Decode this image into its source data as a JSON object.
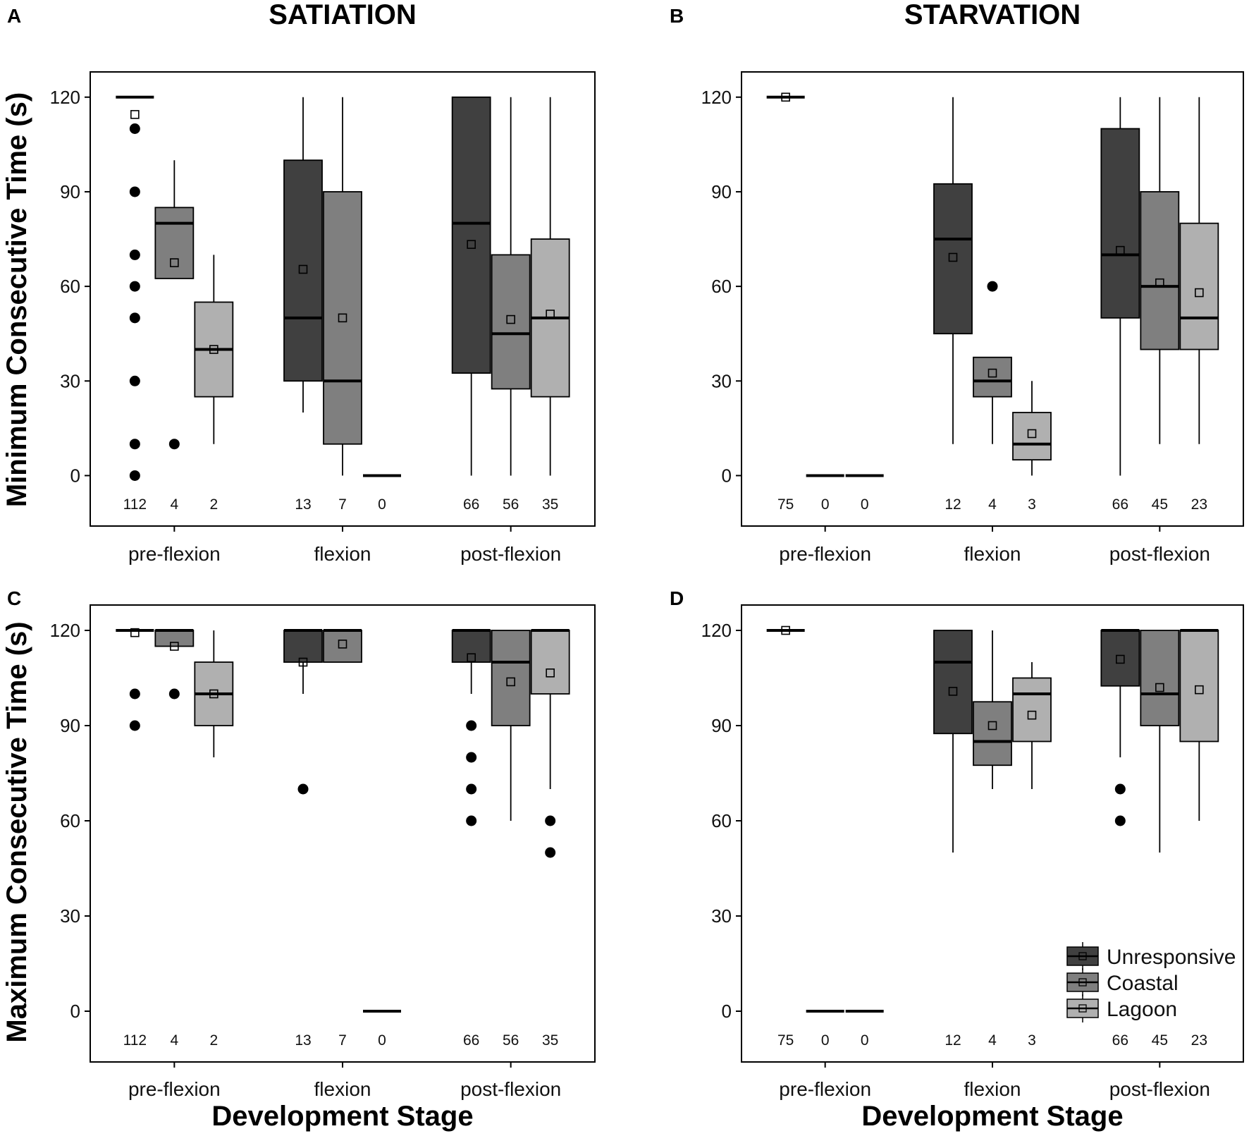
{
  "figure": {
    "col_titles": [
      "SATIATION",
      "STARVATION"
    ],
    "x_axis_title": "Development Stage",
    "y_axis_titles": [
      "Minimum Consecutive Time (s)",
      "Maximum Consecutive Time (s)"
    ]
  },
  "chart_data": [
    {
      "type": "box",
      "panel": "A",
      "title": "SATIATION",
      "ylabel": "Minimum Consecutive Time (s)",
      "xlabel": "",
      "ylim": [
        -16,
        128
      ],
      "yticks": [
        0,
        30,
        60,
        90,
        120
      ],
      "categories": [
        "pre-flexion",
        "flexion",
        "post-flexion"
      ],
      "boxes": [
        {
          "stage": "pre-flexion",
          "group": "Unresponsive",
          "q1": 120,
          "median": 120,
          "q3": 120,
          "low": 120,
          "high": 120,
          "mean": 114.5,
          "n": "112",
          "outliers": [
            110,
            90,
            70,
            60,
            50,
            30,
            10,
            0
          ]
        },
        {
          "stage": "pre-flexion",
          "group": "Coastal",
          "q1": 62.5,
          "median": 80,
          "q3": 85,
          "low": 62.5,
          "high": 100,
          "mean": 67.5,
          "n": "4",
          "outliers": [
            10
          ]
        },
        {
          "stage": "pre-flexion",
          "group": "Lagoon",
          "q1": 25,
          "median": 40,
          "q3": 55,
          "low": 10,
          "high": 70,
          "mean": 40,
          "n": "2",
          "outliers": []
        },
        {
          "stage": "flexion",
          "group": "Unresponsive",
          "q1": 30,
          "median": 50,
          "q3": 100,
          "low": 20,
          "high": 120,
          "mean": 65.4,
          "n": "13",
          "outliers": []
        },
        {
          "stage": "flexion",
          "group": "Coastal",
          "q1": 10,
          "median": 30,
          "q3": 90,
          "low": 0,
          "high": 120,
          "mean": 50,
          "n": "7",
          "outliers": []
        },
        {
          "stage": "flexion",
          "group": "Lagoon",
          "q1": 0,
          "median": 0,
          "q3": 0,
          "low": 0,
          "high": 0,
          "mean": null,
          "n": "0",
          "outliers": []
        },
        {
          "stage": "post-flexion",
          "group": "Unresponsive",
          "q1": 32.5,
          "median": 80,
          "q3": 120,
          "low": 0,
          "high": 120,
          "mean": 73.3,
          "n": "66",
          "outliers": []
        },
        {
          "stage": "post-flexion",
          "group": "Coastal",
          "q1": 27.5,
          "median": 45,
          "q3": 70,
          "low": 0,
          "high": 120,
          "mean": 49.5,
          "n": "56",
          "outliers": []
        },
        {
          "stage": "post-flexion",
          "group": "Lagoon",
          "q1": 25,
          "median": 50,
          "q3": 75,
          "low": 0,
          "high": 120,
          "mean": 51.2,
          "n": "35",
          "outliers": []
        }
      ]
    },
    {
      "type": "box",
      "panel": "B",
      "title": "STARVATION",
      "ylabel": "",
      "xlabel": "",
      "ylim": [
        -16,
        128
      ],
      "yticks": [
        0,
        30,
        60,
        90,
        120
      ],
      "categories": [
        "pre-flexion",
        "flexion",
        "post-flexion"
      ],
      "boxes": [
        {
          "stage": "pre-flexion",
          "group": "Unresponsive",
          "q1": 120,
          "median": 120,
          "q3": 120,
          "low": 120,
          "high": 120,
          "mean": 120,
          "n": "75",
          "outliers": []
        },
        {
          "stage": "pre-flexion",
          "group": "Coastal",
          "q1": 0,
          "median": 0,
          "q3": 0,
          "low": 0,
          "high": 0,
          "mean": null,
          "n": "0",
          "outliers": []
        },
        {
          "stage": "pre-flexion",
          "group": "Lagoon",
          "q1": 0,
          "median": 0,
          "q3": 0,
          "low": 0,
          "high": 0,
          "mean": null,
          "n": "0",
          "outliers": []
        },
        {
          "stage": "flexion",
          "group": "Unresponsive",
          "q1": 45,
          "median": 75,
          "q3": 92.5,
          "low": 10,
          "high": 120,
          "mean": 69.2,
          "n": "12",
          "outliers": []
        },
        {
          "stage": "flexion",
          "group": "Coastal",
          "q1": 25,
          "median": 30,
          "q3": 37.5,
          "low": 10,
          "high": 37.5,
          "mean": 32.5,
          "n": "4",
          "outliers": [
            60
          ]
        },
        {
          "stage": "flexion",
          "group": "Lagoon",
          "q1": 5,
          "median": 10,
          "q3": 20,
          "low": 0,
          "high": 30,
          "mean": 13.3,
          "n": "3",
          "outliers": []
        },
        {
          "stage": "post-flexion",
          "group": "Unresponsive",
          "q1": 50,
          "median": 70,
          "q3": 110,
          "low": 0,
          "high": 120,
          "mean": 71.4,
          "n": "66",
          "outliers": []
        },
        {
          "stage": "post-flexion",
          "group": "Coastal",
          "q1": 40,
          "median": 60,
          "q3": 90,
          "low": 10,
          "high": 120,
          "mean": 61.1,
          "n": "45",
          "outliers": []
        },
        {
          "stage": "post-flexion",
          "group": "Lagoon",
          "q1": 40,
          "median": 50,
          "q3": 80,
          "low": 10,
          "high": 120,
          "mean": 58,
          "n": "23",
          "outliers": []
        }
      ]
    },
    {
      "type": "box",
      "panel": "C",
      "title": "",
      "ylabel": "Maximum Consecutive Time (s)",
      "xlabel": "Development Stage",
      "ylim": [
        -16,
        128
      ],
      "yticks": [
        0,
        30,
        60,
        90,
        120
      ],
      "categories": [
        "pre-flexion",
        "flexion",
        "post-flexion"
      ],
      "boxes": [
        {
          "stage": "pre-flexion",
          "group": "Unresponsive",
          "q1": 120,
          "median": 120,
          "q3": 120,
          "low": 120,
          "high": 120,
          "mean": 119.3,
          "n": "112",
          "outliers": [
            100,
            90
          ]
        },
        {
          "stage": "pre-flexion",
          "group": "Coastal",
          "q1": 115,
          "median": 120,
          "q3": 120,
          "low": 115,
          "high": 120,
          "mean": 115,
          "n": "4",
          "outliers": [
            100
          ]
        },
        {
          "stage": "pre-flexion",
          "group": "Lagoon",
          "q1": 90,
          "median": 100,
          "q3": 110,
          "low": 80,
          "high": 120,
          "mean": 100,
          "n": "2",
          "outliers": []
        },
        {
          "stage": "flexion",
          "group": "Unresponsive",
          "q1": 110,
          "median": 120,
          "q3": 120,
          "low": 100,
          "high": 120,
          "mean": 110,
          "n": "13",
          "outliers": [
            70
          ]
        },
        {
          "stage": "flexion",
          "group": "Coastal",
          "q1": 110,
          "median": 120,
          "q3": 120,
          "low": 110,
          "high": 120,
          "mean": 115.7,
          "n": "7",
          "outliers": []
        },
        {
          "stage": "flexion",
          "group": "Lagoon",
          "q1": 0,
          "median": 0,
          "q3": 0,
          "low": 0,
          "high": 0,
          "mean": null,
          "n": "0",
          "outliers": []
        },
        {
          "stage": "post-flexion",
          "group": "Unresponsive",
          "q1": 110,
          "median": 120,
          "q3": 120,
          "low": 100,
          "high": 120,
          "mean": 111.4,
          "n": "66",
          "outliers": [
            90,
            80,
            70,
            60
          ]
        },
        {
          "stage": "post-flexion",
          "group": "Coastal",
          "q1": 90,
          "median": 110,
          "q3": 120,
          "low": 60,
          "high": 120,
          "mean": 103.8,
          "n": "56",
          "outliers": []
        },
        {
          "stage": "post-flexion",
          "group": "Lagoon",
          "q1": 100,
          "median": 120,
          "q3": 120,
          "low": 70,
          "high": 120,
          "mean": 106.6,
          "n": "35",
          "outliers": [
            60,
            50
          ]
        }
      ]
    },
    {
      "type": "box",
      "panel": "D",
      "title": "",
      "ylabel": "",
      "xlabel": "Development Stage",
      "ylim": [
        -16,
        128
      ],
      "yticks": [
        0,
        30,
        60,
        90,
        120
      ],
      "categories": [
        "pre-flexion",
        "flexion",
        "post-flexion"
      ],
      "legend": {
        "position": "bottom-right",
        "entries": [
          "Unresponsive",
          "Coastal",
          "Lagoon"
        ]
      },
      "boxes": [
        {
          "stage": "pre-flexion",
          "group": "Unresponsive",
          "q1": 120,
          "median": 120,
          "q3": 120,
          "low": 120,
          "high": 120,
          "mean": 120,
          "n": "75",
          "outliers": []
        },
        {
          "stage": "pre-flexion",
          "group": "Coastal",
          "q1": 0,
          "median": 0,
          "q3": 0,
          "low": 0,
          "high": 0,
          "mean": null,
          "n": "0",
          "outliers": []
        },
        {
          "stage": "pre-flexion",
          "group": "Lagoon",
          "q1": 0,
          "median": 0,
          "q3": 0,
          "low": 0,
          "high": 0,
          "mean": null,
          "n": "0",
          "outliers": []
        },
        {
          "stage": "flexion",
          "group": "Unresponsive",
          "q1": 87.5,
          "median": 110,
          "q3": 120,
          "low": 50,
          "high": 120,
          "mean": 100.8,
          "n": "12",
          "outliers": []
        },
        {
          "stage": "flexion",
          "group": "Coastal",
          "q1": 77.5,
          "median": 85,
          "q3": 97.5,
          "low": 70,
          "high": 120,
          "mean": 90,
          "n": "4",
          "outliers": []
        },
        {
          "stage": "flexion",
          "group": "Lagoon",
          "q1": 85,
          "median": 100,
          "q3": 105,
          "low": 70,
          "high": 110,
          "mean": 93.3,
          "n": "3",
          "outliers": []
        },
        {
          "stage": "post-flexion",
          "group": "Unresponsive",
          "q1": 102.5,
          "median": 120,
          "q3": 120,
          "low": 80,
          "high": 120,
          "mean": 110.9,
          "n": "66",
          "outliers": [
            70,
            60
          ]
        },
        {
          "stage": "post-flexion",
          "group": "Coastal",
          "q1": 90,
          "median": 100,
          "q3": 120,
          "low": 50,
          "high": 120,
          "mean": 102,
          "n": "45",
          "outliers": []
        },
        {
          "stage": "post-flexion",
          "group": "Lagoon",
          "q1": 85,
          "median": 120,
          "q3": 120,
          "low": 60,
          "high": 120,
          "mean": 101.3,
          "n": "23",
          "outliers": []
        }
      ]
    }
  ],
  "colors": {
    "Unresponsive": "#404040",
    "Coastal": "#7f7f7f",
    "Lagoon": "#b0b0b0",
    "line": "#000000",
    "background": "#ffffff"
  }
}
